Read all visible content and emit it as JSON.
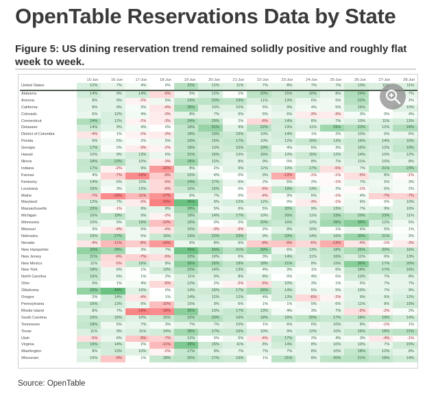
{
  "title": "OpenTable Reservations Data by State",
  "subtitle": "Figure 5: US dining reservation trend remained solidly positive and roughly flat week to week.",
  "source": "Source: OpenTable",
  "overlay": {
    "icon": "zoom-in-magnifier-icon"
  },
  "colors": {
    "positive": "#63be7b",
    "negative": "#f8696b",
    "neutral": "#ffffff"
  },
  "chart_data": {
    "type": "heatmap",
    "title": "Figure 5: US dining reservation trend remained solidly positive and roughly flat week to week.",
    "unit": "%",
    "columns": [
      "15-Jun",
      "16-Jun",
      "17-Jun",
      "18-Jun",
      "19-Jun",
      "20-Jun",
      "21-Jun",
      "22-Jun",
      "23-Jun",
      "24-Jun",
      "25-Jun",
      "26-Jun",
      "27-Jun",
      "28-Jun"
    ],
    "rows": [
      {
        "name": "United States",
        "values": [
          12,
          7,
          4,
          0,
          22,
          12,
          11,
          7,
          8,
          7,
          7,
          13,
          11,
          11
        ]
      },
      {
        "name": "Alabama",
        "values": [
          14,
          9,
          14,
          -6,
          5,
          12,
          1,
          20,
          15,
          16,
          8,
          24,
          null,
          7
        ]
      },
      {
        "name": "Arizona",
        "values": [
          8,
          9,
          -2,
          5,
          19,
          20,
          19,
          11,
          13,
          6,
          5,
          22,
          null,
          2
        ]
      },
      {
        "name": "California",
        "values": [
          8,
          9,
          3,
          -4,
          28,
          10,
          10,
          5,
          9,
          4,
          5,
          16,
          null,
          10
        ]
      },
      {
        "name": "Colorado",
        "values": [
          6,
          12,
          4,
          -3,
          8,
          7,
          6,
          5,
          6,
          -3,
          -3,
          3,
          0,
          4
        ]
      },
      {
        "name": "Connecticut",
        "values": [
          24,
          12,
          -2,
          -3,
          24,
          20,
          2,
          -6,
          14,
          8,
          7,
          10,
          11,
          13
        ]
      },
      {
        "name": "Delaware",
        "values": [
          14,
          9,
          4,
          0,
          18,
          31,
          9,
          22,
          13,
          11,
          29,
          23,
          12,
          24
        ]
      },
      {
        "name": "District of Columbia",
        "values": [
          -4,
          1,
          -2,
          -3,
          18,
          19,
          15,
          10,
          14,
          1,
          2,
          10,
          6,
          6
        ]
      },
      {
        "name": "Florida",
        "values": [
          9,
          5,
          2,
          5,
          19,
          15,
          17,
          10,
          12,
          16,
          13,
          16,
          14,
          16
        ]
      },
      {
        "name": "Georgia",
        "values": [
          17,
          2,
          -3,
          -2,
          18,
          13,
          15,
          19,
          4,
          6,
          3,
          15,
          12,
          19
        ]
      },
      {
        "name": "Hawaii",
        "values": [
          10,
          9,
          13,
          6,
          21,
          16,
          10,
          16,
          10,
          15,
          12,
          14,
          10,
          12
        ]
      },
      {
        "name": "Illinois",
        "values": [
          18,
          23,
          10,
          -3,
          28,
          12,
          8,
          9,
          0,
          8,
          7,
          11,
          10,
          8
        ]
      },
      {
        "name": "Indiana",
        "values": [
          17,
          -2,
          9,
          -16,
          8,
          2,
          9,
          12,
          10,
          17,
          -5,
          7,
          21,
          23
        ]
      },
      {
        "name": "Kansas",
        "values": [
          4,
          -7,
          -18,
          -8,
          15,
          4,
          0,
          9,
          -13,
          -1,
          -1,
          -5,
          8,
          -1
        ]
      },
      {
        "name": "Kentucky",
        "values": [
          14,
          6,
          10,
          -6,
          24,
          17,
          6,
          2,
          5,
          2,
          -1,
          7,
          5,
          3
        ]
      },
      {
        "name": "Louisiana",
        "values": [
          16,
          3,
          12,
          -6,
          16,
          16,
          0,
          -5,
          19,
          13,
          2,
          -1,
          6,
          2
        ]
      },
      {
        "name": "Maine",
        "values": [
          -7,
          -18,
          -11,
          -17,
          6,
          7,
          0,
          -4,
          3,
          6,
          -1,
          4,
          -7,
          -7
        ]
      },
      {
        "name": "Maryland",
        "values": [
          12,
          7,
          -3,
          -20,
          45,
          9,
          12,
          12,
          0,
          -3,
          -1,
          6,
          0,
          10
        ]
      },
      {
        "name": "Massachusetts",
        "values": [
          22,
          -1,
          9,
          8,
          28,
          5,
          6,
          5,
          20,
          9,
          13,
          7,
          9,
          10
        ]
      },
      {
        "name": "Michigan",
        "values": [
          16,
          19,
          9,
          -2,
          18,
          14,
          17,
          10,
          20,
          11,
          23,
          20,
          23,
          11
        ]
      },
      {
        "name": "Minnesota",
        "values": [
          10,
          5,
          19,
          -10,
          18,
          0,
          2,
          20,
          16,
          12,
          28,
          36,
          12,
          5
        ]
      },
      {
        "name": "Missouri",
        "values": [
          3,
          -4,
          5,
          -4,
          15,
          -3,
          -3,
          2,
          9,
          10,
          1,
          6,
          5,
          1
        ]
      },
      {
        "name": "Nebraska",
        "values": [
          15,
          27,
          5,
          16,
          19,
          22,
          23,
          9,
          23,
          14,
          16,
          30,
          21,
          3
        ]
      },
      {
        "name": "Nevada",
        "values": [
          -4,
          -11,
          -8,
          -16,
          6,
          8,
          6,
          -8,
          -9,
          -6,
          -13,
          -4,
          -1,
          -3
        ]
      },
      {
        "name": "New Hampshire",
        "values": [
          33,
          28,
          3,
          7,
          43,
          30,
          21,
          30,
          6,
          13,
          18,
          25,
          20,
          16
        ]
      },
      {
        "name": "New Jersey",
        "values": [
          21,
          -6,
          -7,
          -5,
          22,
          10,
          6,
          3,
          14,
          11,
          16,
          11,
          6,
          13
        ]
      },
      {
        "name": "New Mexico",
        "values": [
          11,
          -5,
          16,
          8,
          35,
          25,
          18,
          18,
          21,
          8,
          15,
          36,
          17,
          20
        ]
      },
      {
        "name": "New York",
        "values": [
          18,
          6,
          1,
          13,
          22,
          14,
          13,
          4,
          3,
          1,
          6,
          18,
          17,
          16
        ]
      },
      {
        "name": "North Carolina",
        "values": [
          16,
          6,
          1,
          2,
          11,
          9,
          8,
          8,
          0,
          4,
          0,
          13,
          7,
          8
        ]
      },
      {
        "name": "Ohio",
        "values": [
          9,
          1,
          4,
          -6,
          12,
          2,
          -2,
          -5,
          10,
          3,
          1,
          5,
          7,
          7
        ]
      },
      {
        "name": "Oklahoma",
        "values": [
          33,
          48,
          10,
          0,
          14,
          15,
          17,
          26,
          14,
          5,
          5,
          10,
          7,
          9
        ]
      },
      {
        "name": "Oregon",
        "values": [
          2,
          14,
          -4,
          1,
          14,
          12,
          12,
          4,
          13,
          -6,
          -2,
          9,
          9,
          12
        ]
      },
      {
        "name": "Pennsylvania",
        "values": [
          16,
          13,
          6,
          -10,
          10,
          9,
          6,
          1,
          1,
          5,
          6,
          11,
          8,
          15
        ]
      },
      {
        "name": "Rhode Island",
        "values": [
          8,
          7,
          -19,
          -18,
          35,
          13,
          17,
          13,
          4,
          3,
          7,
          -5,
          -2,
          2
        ]
      },
      {
        "name": "South Carolina",
        "values": [
          16,
          15,
          10,
          15,
          22,
          23,
          16,
          18,
          16,
          20,
          17,
          18,
          19,
          14
        ]
      },
      {
        "name": "Tennessee",
        "values": [
          18,
          5,
          7,
          3,
          7,
          7,
          10,
          1,
          6,
          6,
          10,
          8,
          -1,
          1
        ]
      },
      {
        "name": "Texas",
        "values": [
          11,
          9,
          11,
          14,
          28,
          17,
          16,
          10,
          9,
          12,
          10,
          16,
          18,
          21
        ]
      },
      {
        "name": "Utah",
        "values": [
          -5,
          6,
          -9,
          -7,
          12,
          0,
          5,
          -4,
          17,
          2,
          4,
          3,
          -4,
          -1
        ]
      },
      {
        "name": "Virginia",
        "values": [
          19,
          14,
          2,
          -11,
          39,
          15,
          11,
          8,
          14,
          8,
          10,
          10,
          7,
          15
        ]
      },
      {
        "name": "Washington",
        "values": [
          8,
          13,
          10,
          -2,
          17,
          9,
          7,
          7,
          7,
          8,
          10,
          18,
          12,
          8
        ]
      },
      {
        "name": "Wisconsin",
        "values": [
          10,
          -9,
          1,
          18,
          20,
          17,
          15,
          1,
          21,
          8,
          20,
          21,
          18,
          14
        ]
      }
    ]
  }
}
